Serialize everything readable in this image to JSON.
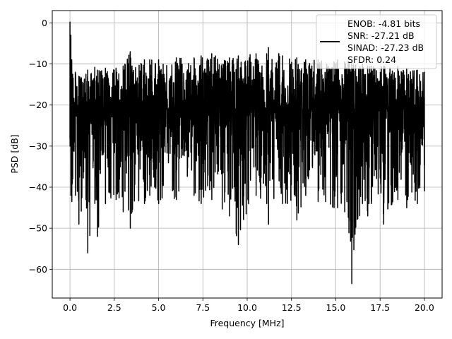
{
  "chart_data": {
    "type": "line",
    "xlabel": "Frequency [MHz]",
    "ylabel": "PSD [dB]",
    "xlim": [
      -1.0,
      21.0
    ],
    "ylim": [
      -67.0,
      3.0
    ],
    "xticks": [
      0.0,
      2.5,
      5.0,
      7.5,
      10.0,
      12.5,
      15.0,
      17.5,
      20.0
    ],
    "xtick_labels": [
      "0.0",
      "2.5",
      "5.0",
      "7.5",
      "10.0",
      "12.5",
      "15.0",
      "17.5",
      "20.0"
    ],
    "yticks": [
      0,
      -10,
      -20,
      -30,
      -40,
      -50,
      -60
    ],
    "ytick_labels": [
      "0",
      "−10",
      "−20",
      "−30",
      "−40",
      "−50",
      "−60"
    ],
    "grid": true,
    "legend_position": "top-right",
    "legend": {
      "lines": [
        "ENOB: -4.81 bits",
        "SNR: -27.21 dB",
        "SINAD: -27.23 dB",
        "SFDR: 0.24"
      ],
      "line_color": "#000000"
    },
    "series": [
      {
        "color": "#000000",
        "x": [
          0.0,
          0.05,
          0.1,
          0.15,
          0.3,
          0.5,
          0.9,
          1.0,
          1.4,
          1.55,
          2.0,
          2.6,
          3.0,
          3.1,
          3.4,
          3.5,
          4.2,
          4.5,
          5.0,
          6.0,
          7.0,
          7.4,
          8.0,
          9.0,
          9.5,
          10.5,
          11.1,
          11.2,
          12.0,
          12.8,
          13.3,
          14.0,
          14.9,
          15.1,
          15.5,
          15.9,
          16.5,
          16.8,
          17.0,
          17.7,
          18.5,
          19.0,
          19.6,
          20.0
        ],
        "y_max": [
          0.2,
          -3.0,
          -9.0,
          -12.5,
          -12.0,
          -13.0,
          -12.5,
          -11.5,
          -10.8,
          -11.5,
          -11.0,
          -11.0,
          -10.5,
          -10.0,
          -7.0,
          -10.5,
          -9.0,
          -9.0,
          -9.0,
          -8.5,
          -8.5,
          -8.0,
          -7.5,
          -8.5,
          -8.0,
          -7.5,
          -7.5,
          -6.0,
          -8.0,
          -8.5,
          -9.0,
          -9.0,
          -9.5,
          -9.0,
          -9.5,
          -9.5,
          -10.0,
          -10.5,
          -10.5,
          -10.5,
          -10.5,
          -11.0,
          -11.5,
          -12.0
        ],
        "y_min": [
          -30.0,
          -42.0,
          -43.5,
          -38.0,
          -42.0,
          -49.0,
          -43.0,
          -56.0,
          -44.0,
          -52.0,
          -44.0,
          -43.0,
          -46.0,
          -41.0,
          -50.0,
          -46.0,
          -44.0,
          -42.0,
          -44.0,
          -43.0,
          -42.0,
          -44.0,
          -43.0,
          -47.0,
          -54.0,
          -42.0,
          -44.0,
          -49.0,
          -44.0,
          -48.0,
          -42.0,
          -43.5,
          -45.0,
          -45.0,
          -46.0,
          -63.5,
          -44.0,
          -47.0,
          -44.0,
          -49.0,
          -43.0,
          -45.0,
          -44.0,
          -41.0
        ],
        "y_center": -21.0,
        "points_per_mhz": 140
      }
    ]
  }
}
